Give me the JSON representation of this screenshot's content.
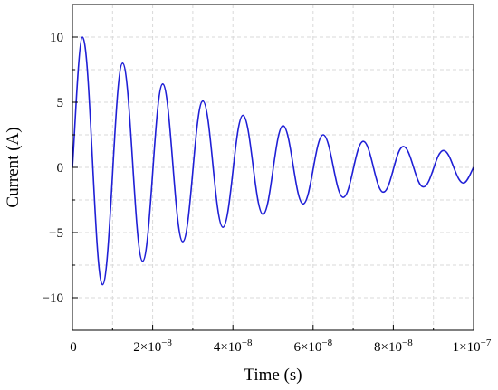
{
  "chart_data": {
    "type": "line",
    "xlabel": "Time (s)",
    "ylabel": "Current (A)",
    "xlim": [
      0,
      1e-07
    ],
    "ylim": [
      -12.5,
      12.5
    ],
    "grid": true,
    "x_ticks": [
      {
        "value": 0,
        "label": "0"
      },
      {
        "value": 2e-08,
        "mantissa": "2",
        "exponent": "−8"
      },
      {
        "value": 4e-08,
        "mantissa": "4",
        "exponent": "−8"
      },
      {
        "value": 6e-08,
        "mantissa": "6",
        "exponent": "−8"
      },
      {
        "value": 8e-08,
        "mantissa": "8",
        "exponent": "−8"
      },
      {
        "value": 1e-07,
        "mantissa": "1",
        "exponent": "−7"
      }
    ],
    "y_ticks": [
      {
        "value": 10,
        "label": "10"
      },
      {
        "value": 5,
        "label": "5"
      },
      {
        "value": 0,
        "label": "0"
      },
      {
        "value": -5,
        "label": "−5"
      },
      {
        "value": -10,
        "label": "−10"
      }
    ],
    "series": [
      {
        "color": "#1f1fd6",
        "x": [
          0,
          2.5e-09,
          7.5e-09,
          1.25e-08,
          1.75e-08,
          2.25e-08,
          2.75e-08,
          3.25e-08,
          3.75e-08,
          4.25e-08,
          4.75e-08,
          5.25e-08,
          5.75e-08,
          6.25e-08,
          6.75e-08,
          7.25e-08,
          7.75e-08,
          8.25e-08,
          8.75e-08,
          9.25e-08,
          9.75e-08,
          1e-07
        ],
        "y": [
          0,
          10.0,
          -9.0,
          8.0,
          -7.2,
          6.4,
          -5.7,
          5.1,
          -4.6,
          4.0,
          -3.6,
          3.2,
          -2.8,
          2.5,
          -2.3,
          2.0,
          -1.9,
          1.6,
          -1.5,
          1.3,
          -1.2,
          0
        ]
      }
    ]
  }
}
